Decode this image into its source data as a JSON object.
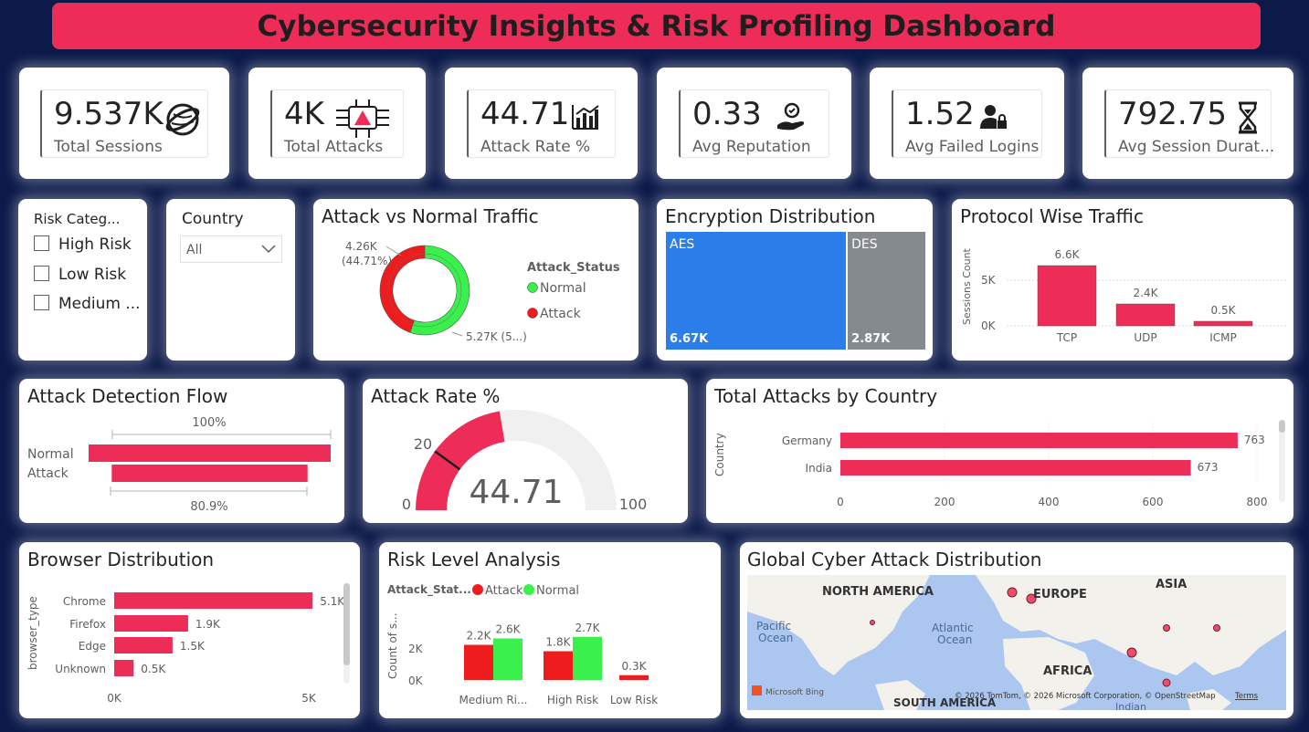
{
  "title": "Cybersecurity Insights & Risk Profiling Dashboard",
  "kpis": [
    {
      "value": "9.537K",
      "label": "Total Sessions",
      "icon": "globe-icon"
    },
    {
      "value": "4K",
      "label": "Total Attacks",
      "icon": "circuit-alert-icon"
    },
    {
      "value": "44.71",
      "label": "Attack Rate %",
      "icon": "bar-chart-icon"
    },
    {
      "value": "0.33",
      "label": "Avg Reputation",
      "icon": "reputation-hand-icon"
    },
    {
      "value": "1.52",
      "label": "Avg Failed Logins",
      "icon": "user-lock-icon"
    },
    {
      "value": "792.75",
      "label": "Avg Session Durat...",
      "icon": "hourglass-icon"
    }
  ],
  "risk_slicer": {
    "title": "Risk Categ...",
    "options": [
      "High Risk",
      "Low Risk",
      "Medium ..."
    ]
  },
  "country_slicer": {
    "title": "Country",
    "selected": "All"
  },
  "donut": {
    "title": "Attack vs Normal Traffic",
    "legend_title": "Attack_Status",
    "label_attack_1": "4.26K",
    "label_attack_2": "(44.71%)",
    "label_normal": "5.27K (5...)",
    "legend": [
      {
        "name": "Normal",
        "color": "#3af04c"
      },
      {
        "name": "Attack",
        "color": "#ee1c1c"
      }
    ]
  },
  "encryption": {
    "title": "Encryption Distribution",
    "aes_label": "AES",
    "aes_value": "6.67K",
    "des_label": "DES",
    "des_value": "2.87K"
  },
  "protocol": {
    "title": "Protocol Wise Traffic",
    "ylabel": "Sessions Count",
    "ticks": [
      "5K",
      "0K"
    ]
  },
  "flow": {
    "title": "Attack Detection Flow",
    "top_pct": "100%",
    "bottom_pct": "80.9%",
    "stages": [
      "Normal",
      "Attack"
    ]
  },
  "gauge": {
    "title": "Attack Rate %",
    "value": "44.71",
    "min": "0",
    "max": "100",
    "target": "20"
  },
  "by_country": {
    "title": "Total Attacks by Country",
    "ylabel": "Country"
  },
  "browser": {
    "title": "Browser Distribution",
    "ylabel": "browser_type"
  },
  "risk_level": {
    "title": "Risk Level Analysis",
    "legend_title": "Attack_Stat...",
    "ylabel": "Count of s...",
    "ticks": [
      "2K",
      "0K"
    ]
  },
  "map": {
    "title": "Global Cyber Attack Distribution",
    "labels": [
      "NORTH AMERICA",
      "EUROPE",
      "ASIA",
      "AFRICA",
      "SOUTH AMERICA",
      "Pacific",
      "Ocean",
      "Atlantic",
      "Ocean",
      "Indian"
    ],
    "logo": "Microsoft Bing",
    "credits": "© 2026 TomTom, © 2026 Microsoft Corporation, © OpenStreetMap",
    "terms": "Terms"
  },
  "chart_data": [
    {
      "type": "pie",
      "title": "Attack vs Normal Traffic",
      "categories": [
        "Attack",
        "Normal"
      ],
      "values": [
        4260,
        5270
      ],
      "percent": [
        44.71,
        55.29
      ]
    },
    {
      "type": "bar",
      "title": "Encryption Distribution",
      "categories": [
        "AES",
        "DES"
      ],
      "values": [
        6670,
        2870
      ],
      "colors": [
        "#2b7de9",
        "#858a8f"
      ]
    },
    {
      "type": "bar",
      "title": "Protocol Wise Traffic",
      "categories": [
        "TCP",
        "UDP",
        "ICMP"
      ],
      "values": [
        6600,
        2400,
        500
      ],
      "data_labels": [
        "6.6K",
        "2.4K",
        "0.5K"
      ],
      "ylim": [
        0,
        7000
      ],
      "ylabel": "Sessions Count"
    },
    {
      "type": "bar",
      "title": "Attack Detection Flow",
      "categories": [
        "Normal",
        "Attack"
      ],
      "values": [
        100,
        80.9
      ]
    },
    {
      "type": "gauge",
      "title": "Attack Rate %",
      "value": 44.71,
      "min": 0,
      "max": 100,
      "target": 20
    },
    {
      "type": "bar",
      "title": "Total Attacks by Country",
      "orientation": "horizontal",
      "categories": [
        "Germany",
        "India"
      ],
      "values": [
        763,
        673
      ],
      "xlim": [
        0,
        800
      ],
      "ticks": [
        0,
        200,
        400,
        600,
        800
      ],
      "ylabel": "Country"
    },
    {
      "type": "bar",
      "title": "Browser Distribution",
      "orientation": "horizontal",
      "categories": [
        "Chrome",
        "Firefox",
        "Edge",
        "Unknown"
      ],
      "values": [
        5100,
        1900,
        1500,
        500
      ],
      "data_labels": [
        "5.1K",
        "1.9K",
        "1.5K",
        "0.5K"
      ],
      "xlim": [
        0,
        5400
      ],
      "ticks": [
        "0K",
        "5K"
      ],
      "ylabel": "browser_type"
    },
    {
      "type": "bar",
      "title": "Risk Level Analysis",
      "categories": [
        "Medium Ri...",
        "High Risk",
        "Low Risk"
      ],
      "series": [
        {
          "name": "Attack",
          "color": "#ee1c1c",
          "values": [
            2200,
            1800,
            300
          ],
          "labels": [
            "2.2K",
            "1.8K",
            "0.3K"
          ]
        },
        {
          "name": "Normal",
          "color": "#3af04c",
          "values": [
            2600,
            2700,
            null
          ],
          "labels": [
            "2.6K",
            "2.7K",
            ""
          ]
        }
      ],
      "ylim": [
        0,
        3000
      ]
    }
  ]
}
